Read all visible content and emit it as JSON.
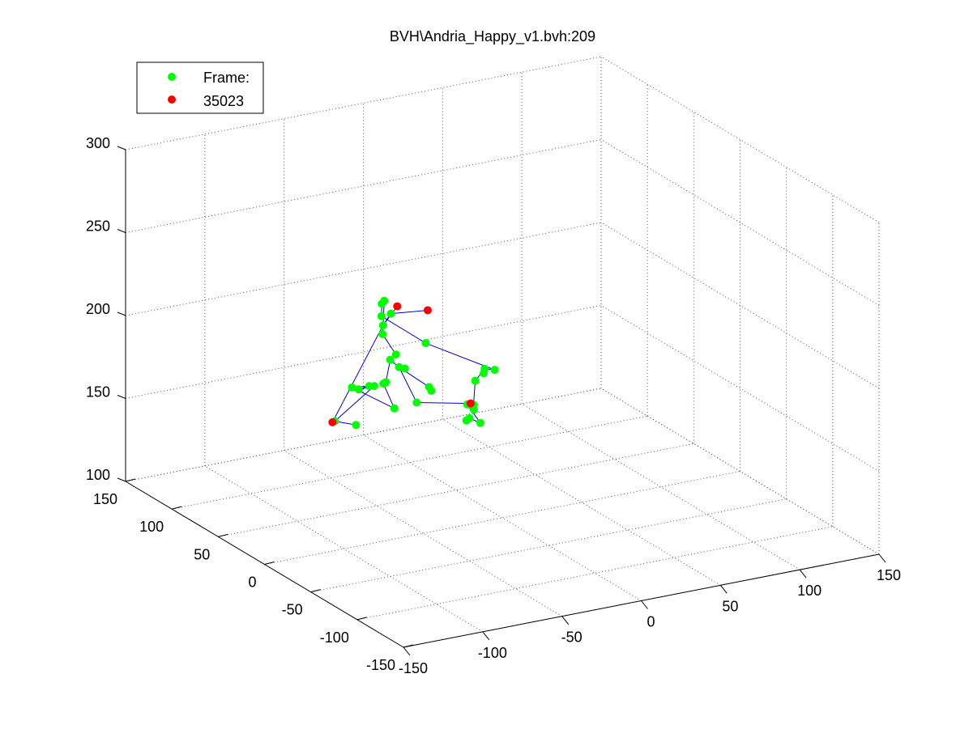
{
  "figure": {
    "title": "BVH\\Andria_Happy_v1.bvh:209"
  },
  "legend": {
    "placement": "top-left",
    "entries": [
      {
        "label": "Frame:",
        "color": "#00ff00"
      },
      {
        "label": "35023",
        "color": "#ff0000"
      }
    ]
  },
  "colors": {
    "joint": "#00ff00",
    "end_site": "#ff0000",
    "bone": "#0000cc",
    "grid": "#555555",
    "axis": "#000000"
  },
  "chart_data": {
    "type": "scatter",
    "projection": "3d",
    "grid": true,
    "xlim": [
      -150,
      150
    ],
    "ylim": [
      -150,
      150
    ],
    "zlim": [
      100,
      300
    ],
    "x_ticks": [
      "-150",
      "-100",
      "-50",
      "0",
      "50",
      "100",
      "150"
    ],
    "y_ticks": [
      "-150",
      "-100",
      "-50",
      "0",
      "50",
      "100",
      "150"
    ],
    "z_ticks": [
      "100",
      "150",
      "200",
      "250",
      "300"
    ],
    "series": [
      {
        "name": "Frame:",
        "color": "#00ff00",
        "points": [
          [
            -40,
            24,
            169
          ],
          [
            -40,
            43,
            184
          ],
          [
            -41,
            35,
            186
          ],
          [
            -31,
            26,
            176
          ],
          [
            -29,
            27,
            173
          ],
          [
            -45,
            44,
            189
          ],
          [
            -42,
            43,
            192
          ],
          [
            -44,
            54,
            201
          ],
          [
            -46,
            50,
            208
          ],
          [
            -37,
            57,
            211
          ],
          [
            -47,
            47,
            224
          ],
          [
            -48,
            48,
            222
          ],
          [
            -54,
            38,
            219
          ],
          [
            -32,
            28,
            202
          ],
          [
            -6,
            -2,
            191
          ],
          [
            -10,
            2,
            191
          ],
          [
            -10,
            3,
            188
          ],
          [
            -20,
            -5,
            188
          ],
          [
            -24,
            -10,
            176
          ],
          [
            -25,
            -12,
            174
          ],
          [
            -32,
            -17,
            180
          ],
          [
            -22,
            -14,
            166
          ],
          [
            -30,
            -16,
            171
          ],
          [
            -32,
            -16,
            170
          ],
          [
            -53,
            35,
            180
          ],
          [
            -54,
            36,
            179
          ],
          [
            -50,
            31,
            165
          ],
          [
            -68,
            46,
            176
          ],
          [
            -60,
            41,
            177
          ],
          [
            -69,
            37,
            178
          ],
          [
            -51,
            51,
            172
          ],
          [
            -70,
            61,
            151
          ],
          [
            -59,
            57,
            148
          ]
        ]
      },
      {
        "name": "35023",
        "color": "#ff0000",
        "points": [
          [
            -26,
            36,
            218
          ],
          [
            -40,
            45,
            220
          ],
          [
            -68,
            67,
            148
          ],
          [
            -27,
            -12,
            178
          ]
        ]
      }
    ]
  }
}
